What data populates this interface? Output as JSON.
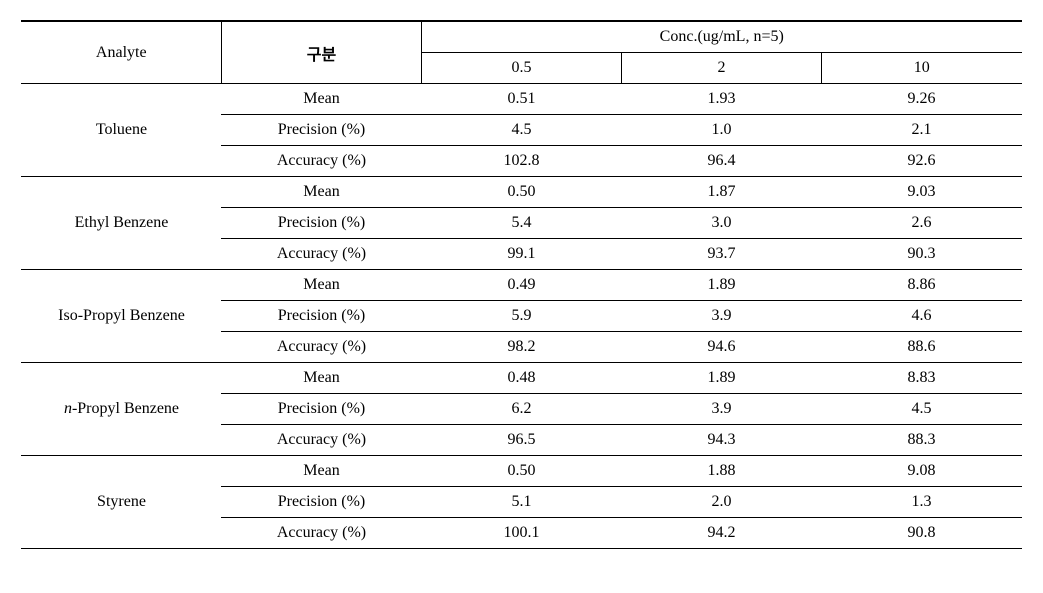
{
  "header": {
    "analyte": "Analyte",
    "gubun": "구분",
    "conc_title": "Conc.(ug/mL, n=5)",
    "conc_levels": [
      "0.5",
      "2",
      "10"
    ]
  },
  "metrics": [
    "Mean",
    "Precision (%)",
    "Accuracy (%)"
  ],
  "analytes": [
    {
      "name": "Toluene",
      "italicPrefix": false,
      "rows": [
        [
          "0.51",
          "1.93",
          "9.26"
        ],
        [
          "4.5",
          "1.0",
          "2.1"
        ],
        [
          "102.8",
          "96.4",
          "92.6"
        ]
      ]
    },
    {
      "name": "Ethyl Benzene",
      "italicPrefix": false,
      "rows": [
        [
          "0.50",
          "1.87",
          "9.03"
        ],
        [
          "5.4",
          "3.0",
          "2.6"
        ],
        [
          "99.1",
          "93.7",
          "90.3"
        ]
      ]
    },
    {
      "name": "Iso-Propyl Benzene",
      "italicPrefix": false,
      "rows": [
        [
          "0.49",
          "1.89",
          "8.86"
        ],
        [
          "5.9",
          "3.9",
          "4.6"
        ],
        [
          "98.2",
          "94.6",
          "88.6"
        ]
      ]
    },
    {
      "name": "n-Propyl Benzene",
      "italicPrefix": true,
      "prefix": "n",
      "suffix": "-Propyl Benzene",
      "rows": [
        [
          "0.48",
          "1.89",
          "8.83"
        ],
        [
          "6.2",
          "3.9",
          "4.5"
        ],
        [
          "96.5",
          "94.3",
          "88.3"
        ]
      ]
    },
    {
      "name": "Styrene",
      "italicPrefix": false,
      "rows": [
        [
          "0.50",
          "1.88",
          "9.08"
        ],
        [
          "5.1",
          "2.0",
          "1.3"
        ],
        [
          "100.1",
          "94.2",
          "90.8"
        ]
      ]
    }
  ]
}
